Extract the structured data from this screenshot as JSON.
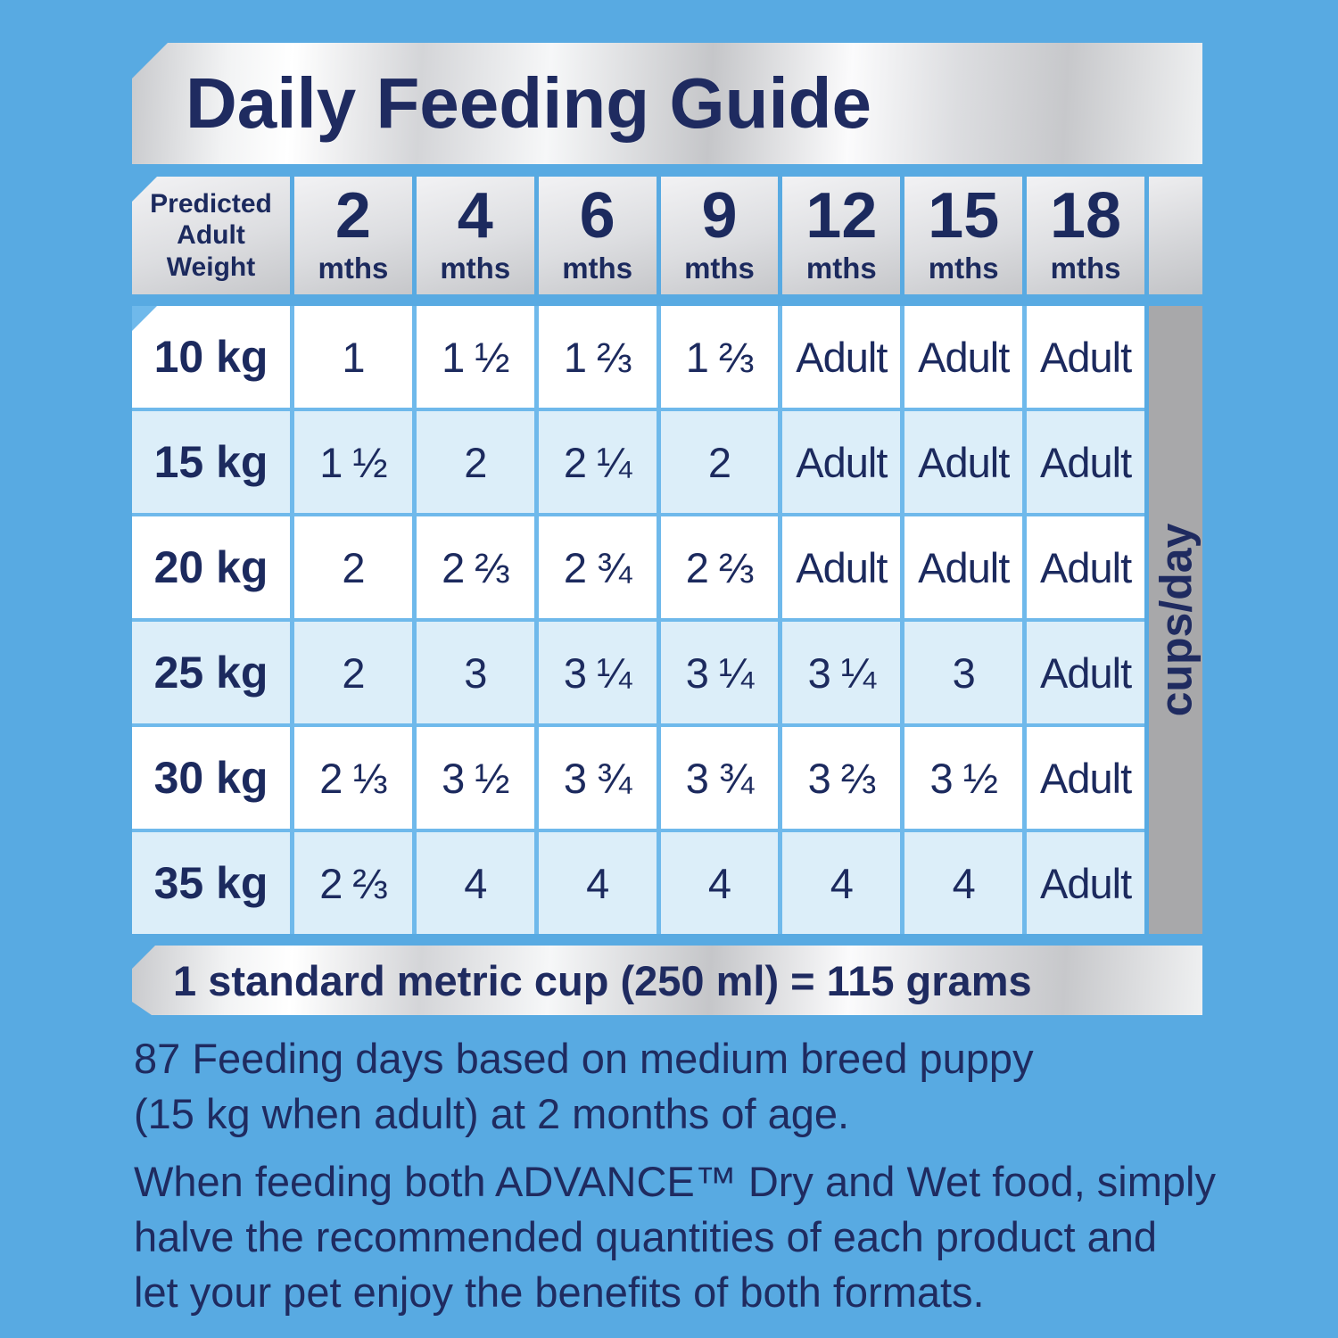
{
  "title": "Daily Feeding Guide",
  "colors": {
    "background": "#58AAE2",
    "navy_text": "#1F2B60",
    "row_white": "#FFFFFF",
    "row_light_blue": "#DCEEF9",
    "grid_line_blue": "#6FB9EB",
    "cups_strip_gray": "#A8A8AA"
  },
  "table": {
    "corner_header": "Predicted Adult Weight",
    "unit_label": "cups/day",
    "age_columns": [
      {
        "num": "2",
        "unit": "mths"
      },
      {
        "num": "4",
        "unit": "mths"
      },
      {
        "num": "6",
        "unit": "mths"
      },
      {
        "num": "9",
        "unit": "mths"
      },
      {
        "num": "12",
        "unit": "mths"
      },
      {
        "num": "15",
        "unit": "mths"
      },
      {
        "num": "18",
        "unit": "mths"
      }
    ],
    "rows": [
      {
        "weight": "10 kg",
        "values": [
          "1",
          "1 ½",
          "1 ⅔",
          "1 ⅔",
          "Adult",
          "Adult",
          "Adult"
        ]
      },
      {
        "weight": "15 kg",
        "values": [
          "1 ½",
          "2",
          "2 ¼",
          "2",
          "Adult",
          "Adult",
          "Adult"
        ]
      },
      {
        "weight": "20 kg",
        "values": [
          "2",
          "2 ⅔",
          "2 ¾",
          "2 ⅔",
          "Adult",
          "Adult",
          "Adult"
        ]
      },
      {
        "weight": "25 kg",
        "values": [
          "2",
          "3",
          "3 ¼",
          "3 ¼",
          "3 ¼",
          "3",
          "Adult"
        ]
      },
      {
        "weight": "30 kg",
        "values": [
          "2 ⅓",
          "3 ½",
          "3 ¾",
          "3 ¾",
          "3 ⅔",
          "3 ½",
          "Adult"
        ]
      },
      {
        "weight": "35 kg",
        "values": [
          "2 ⅔",
          "4",
          "4",
          "4",
          "4",
          "4",
          "Adult"
        ]
      }
    ]
  },
  "footnote": "1 standard metric cup (250 ml) = 115 grams",
  "notes": {
    "para1_line1": "87 Feeding days based on medium breed puppy",
    "para1_line2": "(15 kg when adult) at 2 months of age.",
    "para2_line1": "When feeding both ADVANCE™ Dry and Wet food, simply",
    "para2_line2": "halve the recommended quantities of each product and",
    "para2_line3": "let your pet enjoy the benefits of both formats."
  }
}
